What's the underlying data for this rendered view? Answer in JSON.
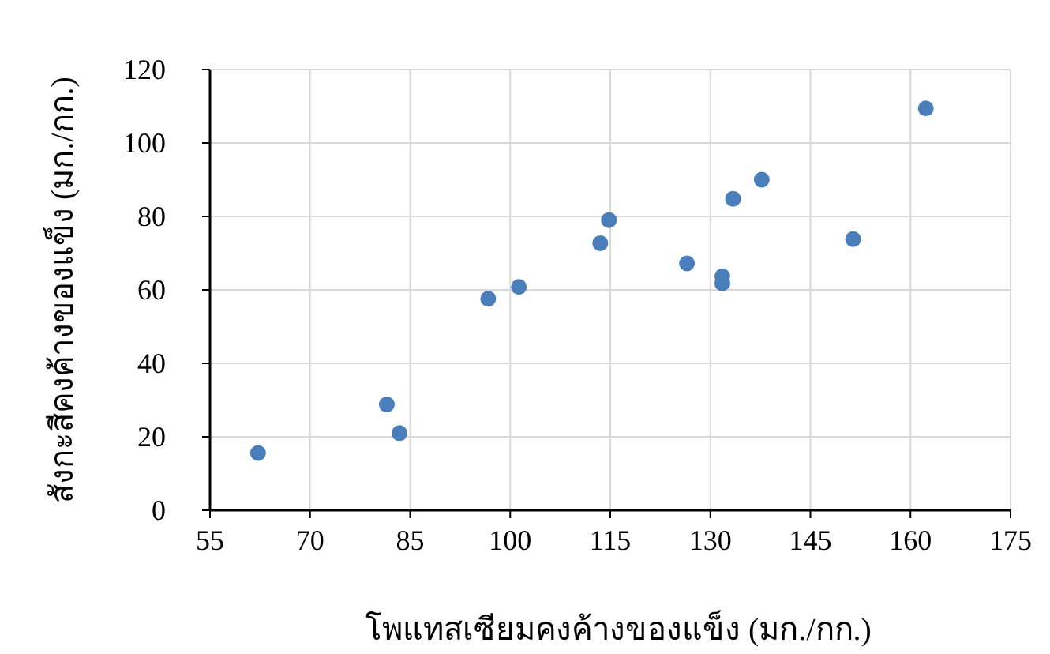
{
  "chart_data": {
    "type": "scatter",
    "xlabel": "โพแทสเซียมคงค้างของแข็ง (มก./กก.)",
    "ylabel": "สังกะสีคงค้างของแข็ง (มก./กก.)",
    "x": [
      62.2,
      81.5,
      83.4,
      96.7,
      101.3,
      113.5,
      114.8,
      126.5,
      131.8,
      131.8,
      133.4,
      137.7,
      151.4,
      162.3
    ],
    "series": [
      {
        "color": "#4a7ebb",
        "values": [
          15.6,
          28.8,
          21.0,
          57.6,
          60.8,
          72.7,
          79.0,
          67.2,
          63.7,
          61.8,
          84.8,
          90.0,
          73.8,
          109.4
        ]
      }
    ],
    "xlim": [
      55,
      175
    ],
    "xticks": [
      55,
      70,
      85,
      100,
      115,
      130,
      145,
      160,
      175
    ],
    "ylim": [
      0,
      120
    ],
    "yticks": [
      0,
      20,
      40,
      60,
      80,
      100,
      120
    ],
    "grid": true,
    "marker": "circle"
  }
}
